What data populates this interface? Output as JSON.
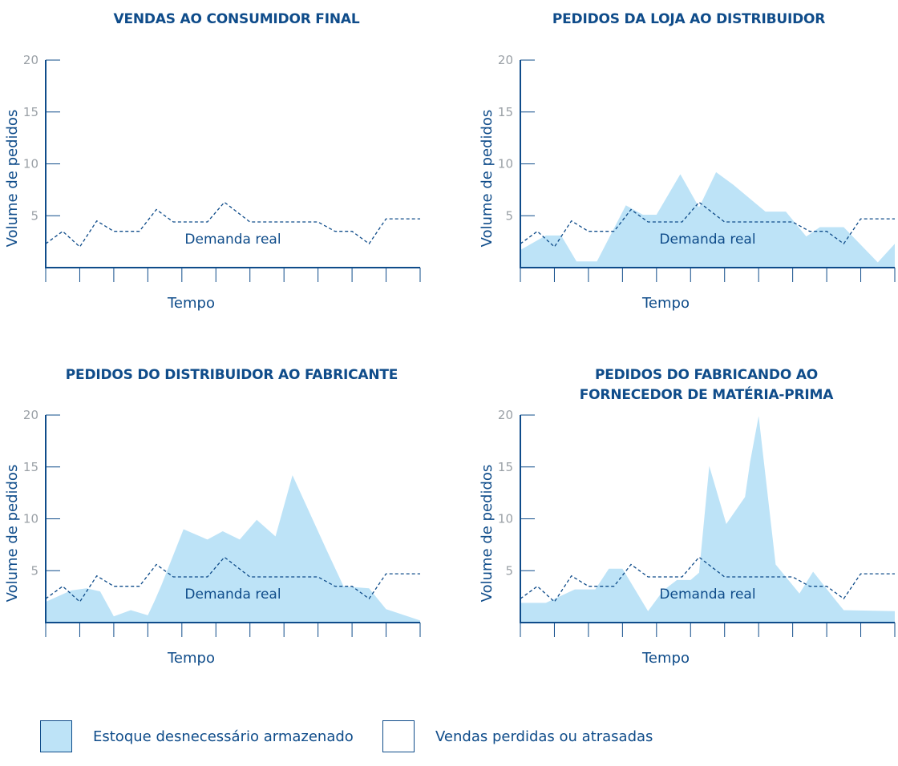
{
  "colors": {
    "axis": "#0f4c8a",
    "fill": "#bde3f7",
    "dashed": "#0f4c8a",
    "tick_label": "#9aa0a6"
  },
  "chart_data": [
    {
      "type": "area",
      "title": [
        "VENDAS AO CONSUMIDOR FINAL"
      ],
      "xlabel": "Tempo",
      "ylabel": "Volume de pedidos",
      "ylim": [
        0,
        20
      ],
      "yticks": [
        5,
        10,
        15,
        20
      ],
      "xlim": [
        0,
        11
      ],
      "grid": false,
      "annotation": "Demanda real",
      "series": [
        {
          "name": "Demanda real",
          "style": "dashed-line",
          "x": [
            0,
            0.5,
            1,
            1.5,
            2,
            2.75,
            3.25,
            3.75,
            4.75,
            5.25,
            6,
            6.75,
            7.5,
            8,
            8.5,
            9,
            9.5,
            10,
            11
          ],
          "y": [
            2.3,
            3.5,
            2.0,
            4.5,
            3.5,
            3.5,
            5.6,
            4.4,
            4.4,
            6.3,
            4.4,
            4.4,
            4.4,
            4.4,
            3.5,
            3.5,
            2.3,
            4.7,
            4.7
          ]
        }
      ]
    },
    {
      "type": "area",
      "title": [
        "PEDIDOS DA LOJA AO DISTRIBUIDOR"
      ],
      "xlabel": "Tempo",
      "ylabel": "Volume de pedidos",
      "ylim": [
        0,
        20
      ],
      "yticks": [
        5,
        10,
        15,
        20
      ],
      "xlim": [
        0,
        11
      ],
      "grid": false,
      "annotation": "Demanda real",
      "series": [
        {
          "name": "Estoque desnecessário armazenado",
          "style": "filled-area",
          "x": [
            0,
            0.75,
            1.2,
            1.65,
            2.25,
            3.1,
            3.6,
            4,
            4.7,
            5.25,
            5.75,
            6.25,
            7.2,
            7.8,
            8.4,
            8.8,
            9.5,
            10.5,
            11
          ],
          "y": [
            1.7,
            3.1,
            3.1,
            0.6,
            0.6,
            6.0,
            5.1,
            5.1,
            9.0,
            5.8,
            9.2,
            8.0,
            5.4,
            5.4,
            3.0,
            3.9,
            3.9,
            0.5,
            2.3
          ]
        },
        {
          "name": "Demanda real",
          "style": "dashed-line",
          "x": [
            0,
            0.5,
            1,
            1.5,
            2,
            2.75,
            3.25,
            3.75,
            4.75,
            5.25,
            6,
            6.75,
            7.5,
            8,
            8.5,
            9,
            9.5,
            10,
            11
          ],
          "y": [
            2.3,
            3.5,
            2.0,
            4.5,
            3.5,
            3.5,
            5.6,
            4.4,
            4.4,
            6.3,
            4.4,
            4.4,
            4.4,
            4.4,
            3.5,
            3.5,
            2.3,
            4.7,
            4.7
          ]
        }
      ]
    },
    {
      "type": "area",
      "title": [
        "PEDIDOS DO DISTRIBUIDOR AO FABRICANTE"
      ],
      "xlabel": "Tempo",
      "ylabel": "Volume de pedidos",
      "ylim": [
        0,
        20
      ],
      "yticks": [
        5,
        10,
        15,
        20
      ],
      "xlim": [
        0,
        11
      ],
      "grid": false,
      "annotation": "Demanda real",
      "series": [
        {
          "name": "Estoque desnecessário armazenado",
          "style": "filled-area",
          "x": [
            0,
            0.75,
            1.2,
            1.6,
            2,
            2.5,
            3,
            3.2,
            3.4,
            4.05,
            4.75,
            5.2,
            5.7,
            6.2,
            6.75,
            7.25,
            8.25,
            8.75,
            9.5,
            10,
            11
          ],
          "y": [
            2.0,
            3.1,
            3.3,
            3.0,
            0.6,
            1.2,
            0.7,
            2.1,
            3.6,
            9.0,
            8.0,
            8.8,
            8.0,
            9.9,
            8.3,
            14.2,
            7.0,
            3.5,
            3.3,
            1.3,
            0.2
          ]
        },
        {
          "name": "Demanda real",
          "style": "dashed-line",
          "x": [
            0,
            0.5,
            1,
            1.5,
            2,
            2.75,
            3.25,
            3.75,
            4.75,
            5.25,
            6,
            6.75,
            7.5,
            8,
            8.5,
            9,
            9.5,
            10,
            11
          ],
          "y": [
            2.3,
            3.5,
            2.0,
            4.5,
            3.5,
            3.5,
            5.6,
            4.4,
            4.4,
            6.3,
            4.4,
            4.4,
            4.4,
            4.4,
            3.5,
            3.5,
            2.3,
            4.7,
            4.7
          ]
        }
      ]
    },
    {
      "type": "area",
      "title": [
        "PEDIDOS DO FABRICANDO AO",
        "FORNECEDOR DE MATÉRIA-PRIMA"
      ],
      "xlabel": "Tempo",
      "ylabel": "Volume de pedidos",
      "ylim": [
        0,
        20
      ],
      "yticks": [
        5,
        10,
        15,
        20
      ],
      "xlim": [
        0,
        11
      ],
      "grid": false,
      "annotation": "Demanda real",
      "series": [
        {
          "name": "Estoque desnecessário armazenado",
          "style": "filled-area",
          "x": [
            0,
            0.75,
            1.6,
            2.2,
            2.6,
            3,
            3.75,
            4.2,
            4.6,
            5,
            5.25,
            5.55,
            6.05,
            6.6,
            6.75,
            7,
            7.5,
            8.2,
            8.6,
            9.2,
            9.5,
            11
          ],
          "y": [
            1.9,
            1.9,
            3.2,
            3.2,
            5.2,
            5.2,
            1.1,
            3.1,
            4.1,
            4.1,
            4.8,
            15.1,
            9.5,
            12.1,
            15.5,
            19.9,
            5.6,
            2.8,
            4.9,
            2.4,
            1.2,
            1.1
          ]
        },
        {
          "name": "Demanda real",
          "style": "dashed-line",
          "x": [
            0,
            0.5,
            1,
            1.5,
            2,
            2.75,
            3.25,
            3.75,
            4.75,
            5.25,
            6,
            6.75,
            7.5,
            8,
            8.5,
            9,
            9.5,
            10,
            11
          ],
          "y": [
            2.3,
            3.5,
            2.0,
            4.5,
            3.5,
            3.5,
            5.6,
            4.4,
            4.4,
            6.3,
            4.4,
            4.4,
            4.4,
            4.4,
            3.5,
            3.5,
            2.3,
            4.7,
            4.7
          ]
        }
      ]
    }
  ],
  "legend": {
    "items": [
      {
        "label": "Estoque desnecessário armazenado",
        "swatch": "filled",
        "color": "#bde3f7"
      },
      {
        "label": "Vendas perdidas ou atrasadas",
        "swatch": "empty",
        "color": "#ffffff"
      }
    ]
  }
}
